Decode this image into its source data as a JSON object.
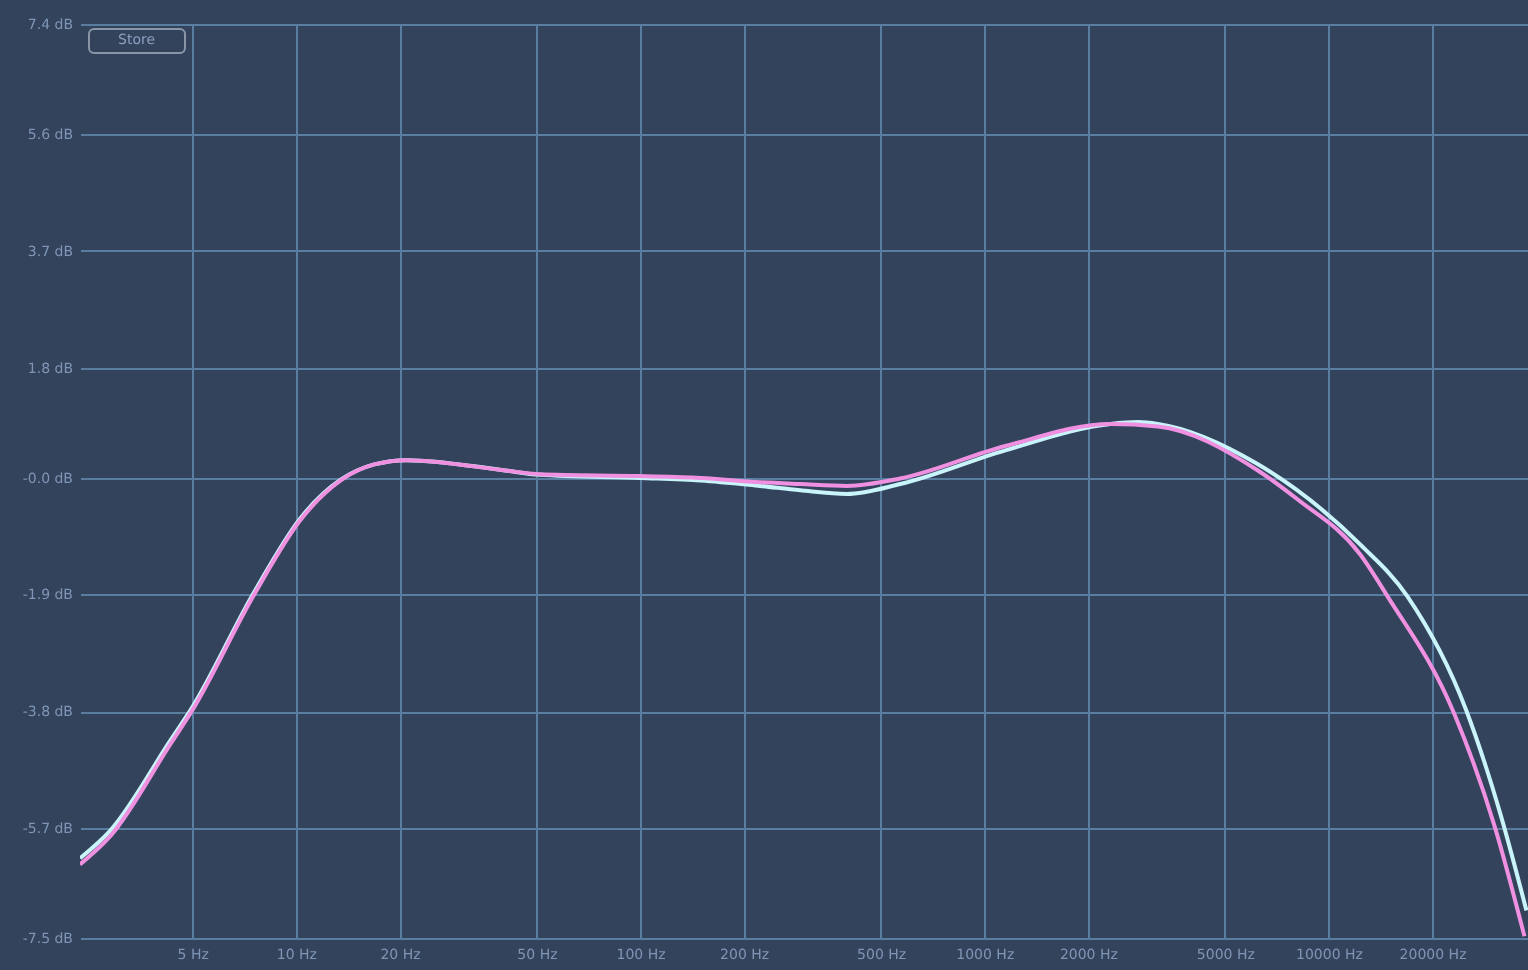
{
  "chart_data": {
    "type": "line",
    "log": "x",
    "grid": true,
    "line_style": "solid",
    "marker": "none",
    "annotations": [
      "Store"
    ],
    "xlim": [
      2.36,
      38000
    ],
    "xticks": [
      {
        "value": 5,
        "label": "5 Hz"
      },
      {
        "value": 10,
        "label": "10 Hz"
      },
      {
        "value": 20,
        "label": "20 Hz"
      },
      {
        "value": 50,
        "label": "50 Hz"
      },
      {
        "value": 100,
        "label": "100 Hz"
      },
      {
        "value": 200,
        "label": "200 Hz"
      },
      {
        "value": 500,
        "label": "500 Hz"
      },
      {
        "value": 1000,
        "label": "1000 Hz"
      },
      {
        "value": 2000,
        "label": "2000 Hz"
      },
      {
        "value": 5000,
        "label": "5000 Hz"
      },
      {
        "value": 10000,
        "label": "10000 Hz"
      },
      {
        "value": 20000,
        "label": "20000 Hz"
      }
    ],
    "ylim": [
      -7.5,
      7.4
    ],
    "yticks": [
      {
        "value": 7.4,
        "label": "7.4 dB"
      },
      {
        "value": 5.6,
        "label": "5.6 dB"
      },
      {
        "value": 3.7,
        "label": "3.7 dB"
      },
      {
        "value": 1.8,
        "label": "1.8 dB"
      },
      {
        "value": 0,
        "label": "-0.0 dB"
      },
      {
        "value": -1.9,
        "label": "-1.9 dB"
      },
      {
        "value": -3.8,
        "label": "-3.8 dB"
      },
      {
        "value": -5.7,
        "label": "-5.7 dB"
      },
      {
        "value": -7.5,
        "label": "-7.5 dB"
      }
    ],
    "series": [
      {
        "color": "#c8f4fa",
        "x": [
          2.36,
          2.89,
          4.32,
          5,
          7.57,
          10.3,
          13.5,
          16.9,
          21,
          39.6,
          51.2,
          100,
          150,
          223,
          292,
          399,
          570,
          1152,
          2325,
          2797,
          3195,
          6205,
          12340,
          16960,
          25150,
          31600,
          37600
        ],
        "values": [
          -6.2,
          -5.75,
          -4.28,
          -3.74,
          -1.86,
          -0.66,
          -0.03,
          0.22,
          0.29,
          0.13,
          0.05,
          0.0,
          -0.04,
          -0.13,
          -0.2,
          -0.26,
          -0.1,
          0.45,
          0.88,
          0.91,
          0.88,
          0.23,
          -1.08,
          -1.93,
          -3.79,
          -5.48,
          -7.05
        ]
      },
      {
        "color": "#f090e0",
        "x": [
          2.36,
          2.89,
          4.32,
          5,
          7.57,
          10.3,
          13.5,
          16.9,
          21,
          39.6,
          51.2,
          100,
          150,
          223,
          292,
          399,
          570,
          1152,
          2325,
          3195,
          6205,
          8180,
          12340,
          14850,
          23220,
          30400,
          37100
        ],
        "values": [
          -6.3,
          -5.84,
          -4.34,
          -3.79,
          -1.9,
          -0.69,
          -0.04,
          0.22,
          0.29,
          0.13,
          0.06,
          0.03,
          0.0,
          -0.07,
          -0.1,
          -0.13,
          -0.01,
          0.52,
          0.88,
          0.84,
          0.13,
          -0.36,
          -1.24,
          -1.93,
          -3.85,
          -5.68,
          -7.47
        ]
      }
    ]
  }
}
